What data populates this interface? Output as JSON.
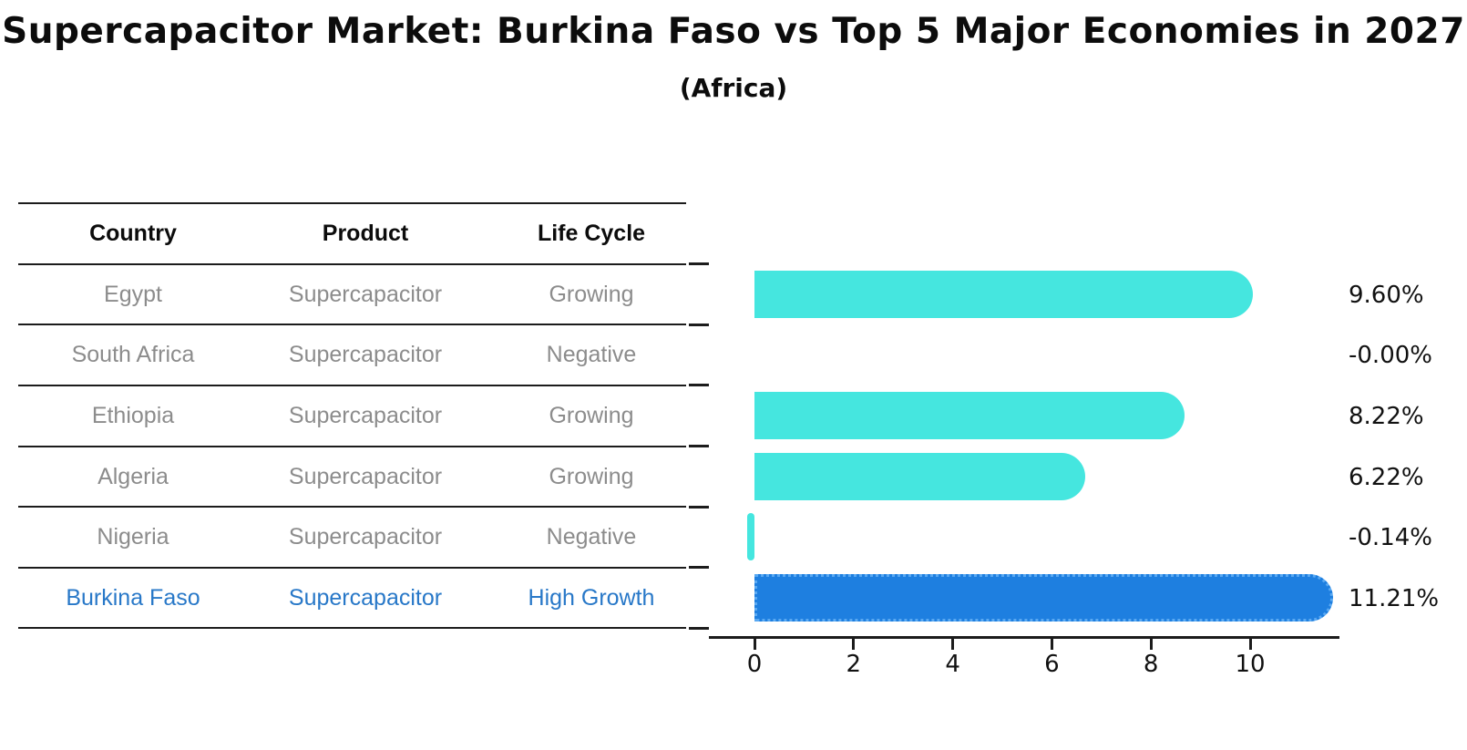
{
  "title": "Supercapacitor Market: Burkina Faso vs Top 5 Major Economies in 2027",
  "subtitle": "(Africa)",
  "table": {
    "headers": [
      "Country",
      "Product",
      "Life Cycle"
    ],
    "rows": [
      {
        "country": "Egypt",
        "product": "Supercapacitor",
        "life_cycle": "Growing",
        "highlight": false
      },
      {
        "country": "South Africa",
        "product": "Supercapacitor",
        "life_cycle": "Negative",
        "highlight": false
      },
      {
        "country": "Ethiopia",
        "product": "Supercapacitor",
        "life_cycle": "Growing",
        "highlight": false
      },
      {
        "country": "Algeria",
        "product": "Supercapacitor",
        "life_cycle": "Growing",
        "highlight": false
      },
      {
        "country": "Nigeria",
        "product": "Supercapacitor",
        "life_cycle": "Negative",
        "highlight": false
      },
      {
        "country": "Burkina Faso",
        "product": "Supercapacitor",
        "life_cycle": "High Growth",
        "highlight": true
      }
    ]
  },
  "chart_data": {
    "type": "bar",
    "orientation": "horizontal",
    "title": "Supercapacitor Market: Burkina Faso vs Top 5 Major Economies in 2027",
    "subtitle": "(Africa)",
    "categories": [
      "Egypt",
      "South Africa",
      "Ethiopia",
      "Algeria",
      "Nigeria",
      "Burkina Faso"
    ],
    "values": [
      9.6,
      -0.0,
      8.22,
      6.22,
      -0.14,
      11.21
    ],
    "value_labels": [
      "9.60%",
      "-0.00%",
      "8.22%",
      "6.22%",
      "-0.14%",
      "11.21%"
    ],
    "x_ticks": [
      0,
      2,
      4,
      6,
      8,
      10
    ],
    "xlim": [
      -0.9,
      11.8
    ],
    "grid": false,
    "legend": false,
    "bar_color": "#45e6df",
    "highlight_color": "#1e7fe0",
    "highlight_border_color": "#5aa9f2",
    "highlight_index": 5,
    "xlabel": "",
    "ylabel": ""
  },
  "colors": {
    "text_primary": "#0c0c0c",
    "text_muted": "#8c8c8c",
    "text_highlight": "#2878c8",
    "axis": "#1c1c1c"
  }
}
